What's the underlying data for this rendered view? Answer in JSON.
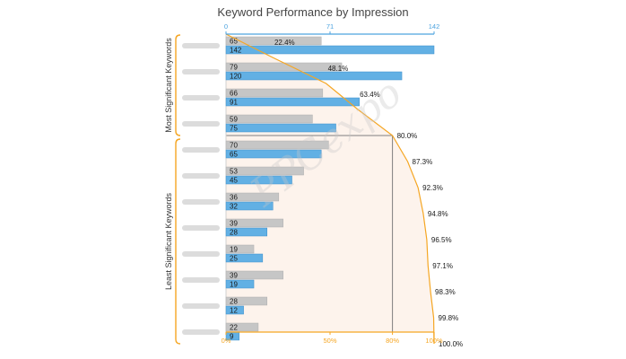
{
  "title": "Keyword Performance by Impression",
  "group_labels": {
    "top": "Most Significant Keywords",
    "bottom": "Least Significant Keywords"
  },
  "watermark": "PPCexpo",
  "colors": {
    "bar_gray": "#c6c6c6",
    "bar_blue": "#62b0e4",
    "pareto_line": "#f5a623",
    "pareto_fill": "#fdf3ec",
    "axis_blue": "#4da3df",
    "axis_orange": "#f5a623",
    "bracket": "#f5a623"
  },
  "chart_data": {
    "type": "bar",
    "orientation": "horizontal",
    "title": "Keyword Performance by Impression",
    "x_top_axis": {
      "range": [
        0,
        142
      ],
      "ticks": [
        0,
        71,
        142
      ]
    },
    "x_bottom_axis": {
      "ticks": [
        "0%",
        "50%",
        "80%",
        "100%"
      ],
      "tick_values": [
        0,
        50,
        80,
        100
      ]
    },
    "categories": [
      "",
      "",
      "",
      "",
      "",
      "",
      "",
      "",
      "",
      "",
      "",
      ""
    ],
    "series": [
      {
        "values": [
          65,
          79,
          66,
          59,
          70,
          53,
          36,
          39,
          19,
          39,
          28,
          22
        ]
      },
      {
        "values": [
          142,
          120,
          91,
          75,
          65,
          45,
          32,
          28,
          25,
          19,
          12,
          9
        ]
      }
    ],
    "cumulative_percent": [
      22.4,
      48.1,
      63.4,
      80.0,
      87.3,
      92.3,
      94.8,
      96.5,
      97.1,
      98.3,
      99.8,
      100.0
    ],
    "cumulative_labels": [
      "22.4%",
      "48.1%",
      "63.4%",
      "80.0%",
      "87.3%",
      "92.3%",
      "94.8%",
      "96.5%",
      "97.1%",
      "98.3%",
      "99.8%",
      "100.0%"
    ],
    "threshold_percent": 80,
    "groups": [
      {
        "label": "Most Significant Keywords",
        "from": 0,
        "to": 3
      },
      {
        "label": "Least Significant Keywords",
        "from": 4,
        "to": 11
      }
    ]
  }
}
